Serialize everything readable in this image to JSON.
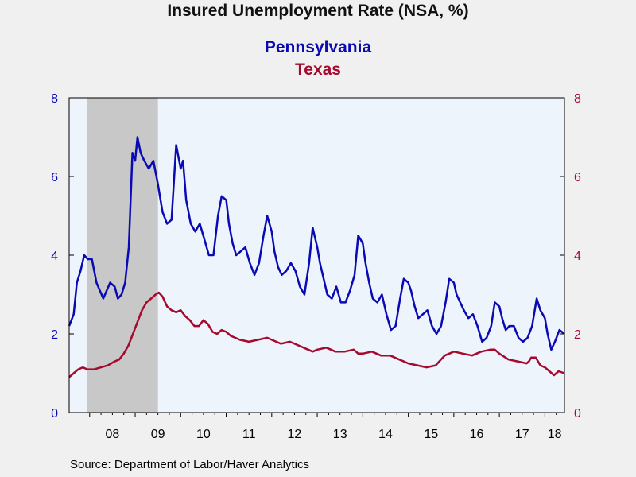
{
  "title": "Insured Unemployment Rate (NSA, %)",
  "source": "Source:  Department of Labor/Haver Analytics",
  "colors": {
    "pennsylvania": "#0a0ab4",
    "texas": "#a50a2d",
    "plot_background": "#eef4fc",
    "recession_shade": "#c8c8c8"
  },
  "chart_data": {
    "type": "line",
    "title": "Insured Unemployment Rate (NSA, %)",
    "x_start": 2007.55,
    "x_end": 2018.43,
    "x_tick_labels": [
      "08",
      "09",
      "10",
      "11",
      "12",
      "13",
      "14",
      "15",
      "16",
      "17",
      "18"
    ],
    "x_tick_years": [
      2008,
      2009,
      2010,
      2011,
      2012,
      2013,
      2014,
      2015,
      2016,
      2017,
      2018
    ],
    "left_axis": {
      "ylim": [
        0,
        8
      ],
      "ticks": [
        "0",
        "2",
        "4",
        "6",
        "8"
      ]
    },
    "right_axis": {
      "ylim": [
        0,
        8
      ],
      "ticks": [
        "0",
        "2",
        "4",
        "6",
        "8"
      ]
    },
    "recession_shading": [
      2007.95,
      2009.5
    ],
    "series": [
      {
        "name": "Pennsylvania",
        "axis": "left",
        "x": [
          2007.55,
          2007.65,
          2007.72,
          2007.8,
          2007.88,
          2007.96,
          2008.05,
          2008.15,
          2008.3,
          2008.45,
          2008.55,
          2008.62,
          2008.7,
          2008.78,
          2008.86,
          2008.94,
          2009.0,
          2009.05,
          2009.12,
          2009.2,
          2009.3,
          2009.4,
          2009.5,
          2009.6,
          2009.7,
          2009.8,
          2009.9,
          2010.0,
          2010.05,
          2010.12,
          2010.22,
          2010.32,
          2010.42,
          2010.52,
          2010.62,
          2010.72,
          2010.82,
          2010.9,
          2011.0,
          2011.06,
          2011.14,
          2011.22,
          2011.32,
          2011.42,
          2011.52,
          2011.62,
          2011.72,
          2011.82,
          2011.9,
          2012.0,
          2012.06,
          2012.14,
          2012.22,
          2012.32,
          2012.42,
          2012.52,
          2012.62,
          2012.72,
          2012.82,
          2012.9,
          2013.0,
          2013.06,
          2013.14,
          2013.22,
          2013.32,
          2013.42,
          2013.52,
          2013.62,
          2013.72,
          2013.82,
          2013.9,
          2014.0,
          2014.06,
          2014.14,
          2014.22,
          2014.32,
          2014.42,
          2014.52,
          2014.62,
          2014.72,
          2014.82,
          2014.9,
          2015.0,
          2015.06,
          2015.14,
          2015.22,
          2015.32,
          2015.42,
          2015.52,
          2015.62,
          2015.72,
          2015.82,
          2015.9,
          2016.0,
          2016.06,
          2016.14,
          2016.22,
          2016.32,
          2016.42,
          2016.52,
          2016.62,
          2016.72,
          2016.82,
          2016.9,
          2017.0,
          2017.06,
          2017.14,
          2017.22,
          2017.32,
          2017.42,
          2017.52,
          2017.62,
          2017.72,
          2017.82,
          2017.9,
          2018.0,
          2018.06,
          2018.14,
          2018.22,
          2018.32,
          2018.43
        ],
        "y": [
          2.2,
          2.5,
          3.3,
          3.6,
          4.0,
          3.9,
          3.9,
          3.3,
          2.9,
          3.3,
          3.2,
          2.9,
          3.0,
          3.3,
          4.2,
          6.6,
          6.4,
          7.0,
          6.6,
          6.4,
          6.2,
          6.4,
          5.8,
          5.1,
          4.8,
          4.9,
          6.8,
          6.2,
          6.4,
          5.4,
          4.8,
          4.6,
          4.8,
          4.4,
          4.0,
          4.0,
          5.0,
          5.5,
          5.4,
          4.8,
          4.3,
          4.0,
          4.1,
          4.2,
          3.8,
          3.5,
          3.8,
          4.5,
          5.0,
          4.6,
          4.1,
          3.7,
          3.5,
          3.6,
          3.8,
          3.6,
          3.2,
          3.0,
          3.8,
          4.7,
          4.2,
          3.8,
          3.4,
          3.0,
          2.9,
          3.2,
          2.8,
          2.8,
          3.1,
          3.5,
          4.5,
          4.3,
          3.8,
          3.3,
          2.9,
          2.8,
          3.0,
          2.5,
          2.1,
          2.2,
          2.9,
          3.4,
          3.3,
          3.1,
          2.7,
          2.4,
          2.5,
          2.6,
          2.2,
          2.0,
          2.2,
          2.8,
          3.4,
          3.3,
          3.0,
          2.8,
          2.6,
          2.4,
          2.5,
          2.2,
          1.8,
          1.9,
          2.2,
          2.8,
          2.7,
          2.4,
          2.1,
          2.2,
          2.2,
          1.9,
          1.8,
          1.9,
          2.2,
          2.9,
          2.6,
          2.4,
          2.0,
          1.6,
          1.8,
          2.1,
          2.0
        ]
      },
      {
        "name": "Texas",
        "axis": "right",
        "x": [
          2007.55,
          2007.65,
          2007.75,
          2007.85,
          2007.95,
          2008.1,
          2008.25,
          2008.4,
          2008.55,
          2008.65,
          2008.75,
          2008.85,
          2008.95,
          2009.05,
          2009.15,
          2009.25,
          2009.35,
          2009.45,
          2009.52,
          2009.6,
          2009.7,
          2009.8,
          2009.9,
          2010.0,
          2010.1,
          2010.2,
          2010.3,
          2010.4,
          2010.5,
          2010.6,
          2010.7,
          2010.8,
          2010.9,
          2011.0,
          2011.1,
          2011.3,
          2011.5,
          2011.7,
          2011.9,
          2012.0,
          2012.2,
          2012.4,
          2012.6,
          2012.8,
          2012.9,
          2013.0,
          2013.2,
          2013.4,
          2013.6,
          2013.8,
          2013.9,
          2014.0,
          2014.2,
          2014.4,
          2014.6,
          2014.8,
          2014.9,
          2015.0,
          2015.2,
          2015.4,
          2015.6,
          2015.8,
          2015.9,
          2016.0,
          2016.2,
          2016.4,
          2016.6,
          2016.8,
          2016.9,
          2017.0,
          2017.2,
          2017.4,
          2017.6,
          2017.65,
          2017.7,
          2017.8,
          2017.9,
          2018.0,
          2018.1,
          2018.2,
          2018.3,
          2018.43
        ],
        "y": [
          0.9,
          1.0,
          1.1,
          1.15,
          1.1,
          1.1,
          1.15,
          1.2,
          1.3,
          1.35,
          1.5,
          1.7,
          2.0,
          2.3,
          2.6,
          2.8,
          2.9,
          3.0,
          3.05,
          2.95,
          2.7,
          2.6,
          2.55,
          2.6,
          2.45,
          2.35,
          2.2,
          2.2,
          2.35,
          2.25,
          2.05,
          2.0,
          2.1,
          2.05,
          1.95,
          1.85,
          1.8,
          1.85,
          1.9,
          1.85,
          1.75,
          1.8,
          1.7,
          1.6,
          1.55,
          1.6,
          1.65,
          1.55,
          1.55,
          1.6,
          1.5,
          1.5,
          1.55,
          1.45,
          1.45,
          1.35,
          1.3,
          1.25,
          1.2,
          1.15,
          1.2,
          1.45,
          1.5,
          1.55,
          1.5,
          1.45,
          1.55,
          1.6,
          1.6,
          1.5,
          1.35,
          1.3,
          1.25,
          1.3,
          1.4,
          1.4,
          1.2,
          1.15,
          1.05,
          0.95,
          1.05,
          1.0
        ]
      }
    ]
  }
}
